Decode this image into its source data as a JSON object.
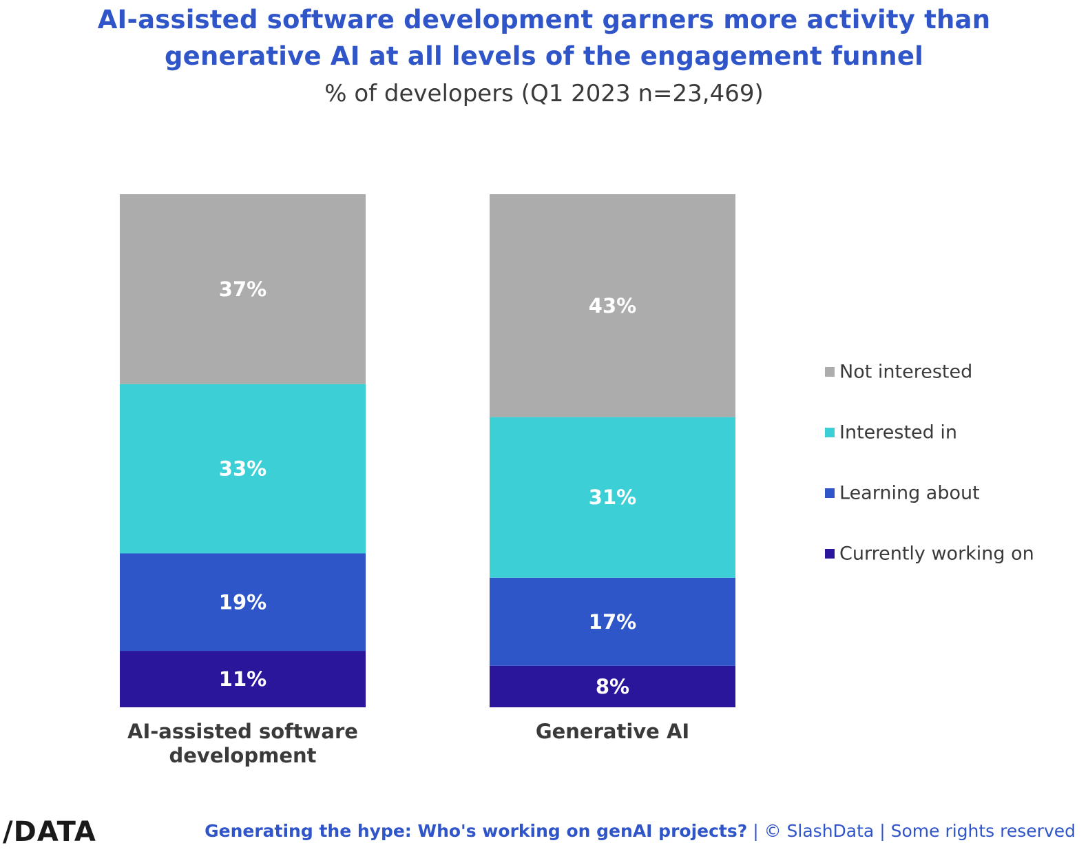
{
  "chart_data": {
    "type": "bar",
    "stacked": true,
    "normalized": true,
    "title": "AI-assisted software development garners more activity than generative AI at all levels of the engagement funnel",
    "title_lines": [
      "AI-assisted software development garners more activity than",
      "generative AI at all levels of the engagement funnel"
    ],
    "subtitle": "% of developers (Q1 2023 n=23,469)",
    "categories": [
      [
        "AI-assisted software",
        "development"
      ],
      [
        "Generative AI"
      ]
    ],
    "series": [
      {
        "name": "Currently working on",
        "color": "#2a169b",
        "values": [
          11,
          8
        ]
      },
      {
        "name": "Learning about",
        "color": "#2e56c8",
        "values": [
          19,
          17
        ]
      },
      {
        "name": "Interested in",
        "color": "#3cd0d6",
        "values": [
          33,
          31
        ]
      },
      {
        "name": "Not interested",
        "color": "#acacac",
        "values": [
          37,
          43
        ]
      }
    ],
    "legend_order": [
      "Not interested",
      "Interested in",
      "Learning about",
      "Currently working on"
    ],
    "legend_position": "right",
    "value_suffix": "%",
    "grid": false,
    "xlabel": "",
    "ylabel": ""
  },
  "footer": {
    "logo": "/DATA",
    "headline": "Generating the hype: Who's working on genAI projects?",
    "separator": "|",
    "credit": "© SlashData",
    "rights": "Some rights reserved"
  }
}
